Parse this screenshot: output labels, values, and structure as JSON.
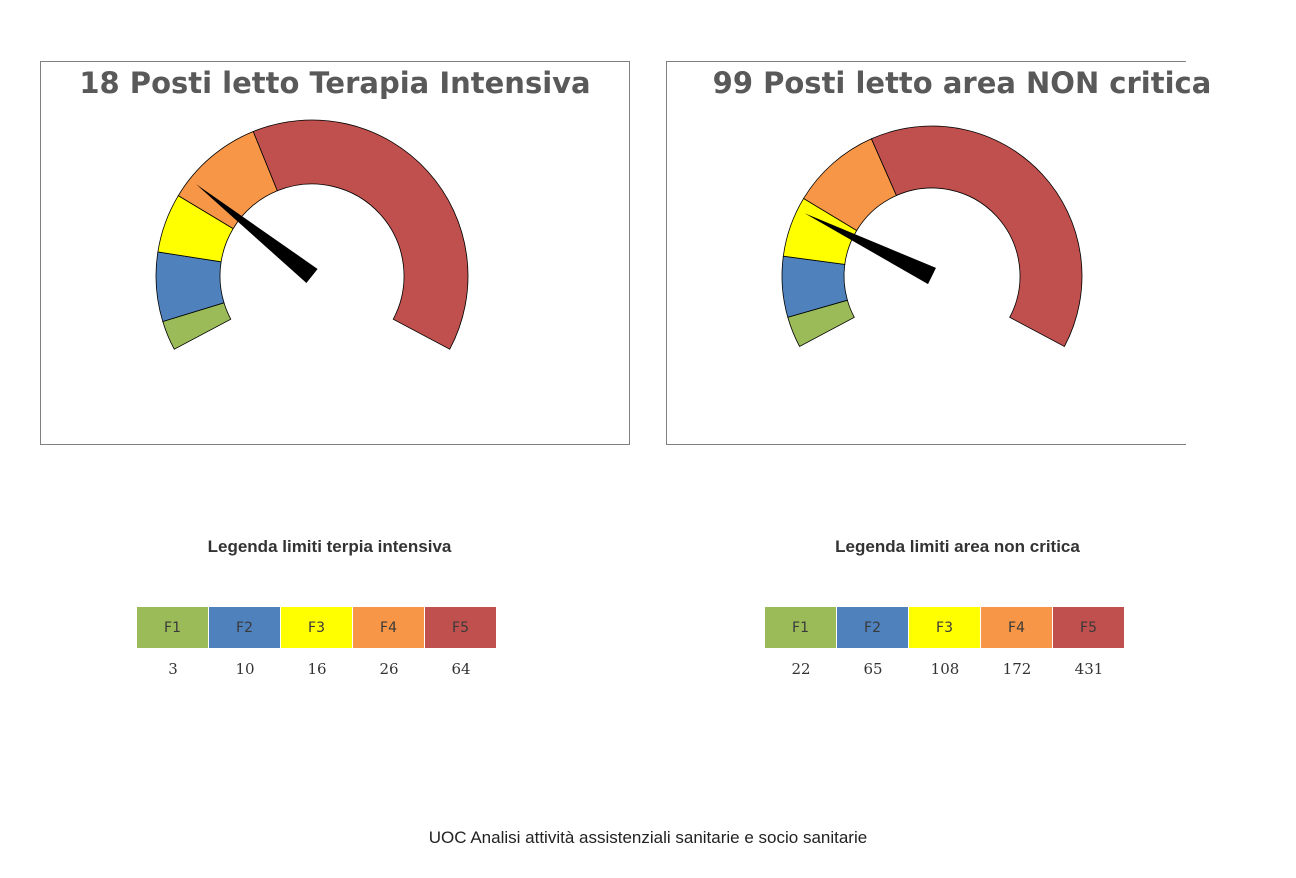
{
  "chart_data": [
    {
      "type": "gauge",
      "title": "18 Posti letto Terapia Intensiva",
      "value": 18,
      "bands": [
        {
          "name": "F1",
          "end": 3,
          "color": "#9BBB59"
        },
        {
          "name": "F2",
          "end": 10,
          "color": "#4F81BD"
        },
        {
          "name": "F3",
          "end": 16,
          "color": "#FFFF00"
        },
        {
          "name": "F4",
          "end": 26,
          "color": "#F79646"
        },
        {
          "name": "F5",
          "end": 64,
          "color": "#C0504D"
        }
      ]
    },
    {
      "type": "gauge",
      "title": "99 Posti letto area NON critica",
      "value": 99,
      "bands": [
        {
          "name": "F1",
          "end": 22,
          "color": "#9BBB59"
        },
        {
          "name": "F2",
          "end": 65,
          "color": "#4F81BD"
        },
        {
          "name": "F3",
          "end": 108,
          "color": "#FFFF00"
        },
        {
          "name": "F4",
          "end": 172,
          "color": "#F79646"
        },
        {
          "name": "F5",
          "end": 431,
          "color": "#C0504D"
        }
      ]
    }
  ],
  "legends": [
    {
      "title": "Legenda limiti terpia intensiva",
      "labels": [
        "F1",
        "F2",
        "F3",
        "F4",
        "F5"
      ],
      "values": [
        "3",
        "10",
        "16",
        "26",
        "64"
      ]
    },
    {
      "title": "Legenda limiti area non critica",
      "labels": [
        "F1",
        "F2",
        "F3",
        "F4",
        "F5"
      ],
      "values": [
        "22",
        "65",
        "108",
        "172",
        "431"
      ]
    }
  ],
  "footer": "UOC Analisi attività assistenziali sanitarie e socio sanitarie"
}
